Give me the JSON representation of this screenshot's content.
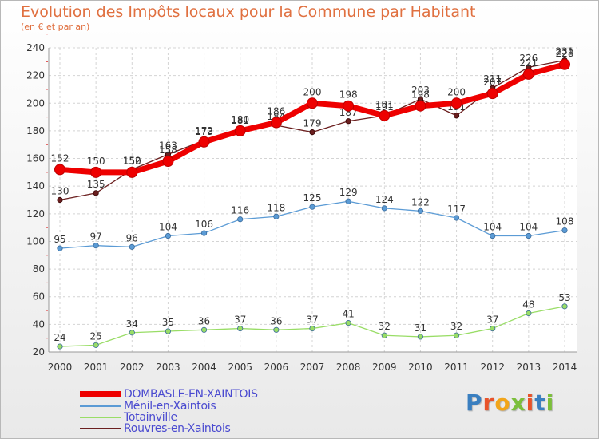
{
  "title": "Evolution des Impôts locaux pour la Commune par Habitant",
  "subtitle": "(en € et par an)",
  "logo_text": "Proxiti",
  "chart_data": {
    "type": "line",
    "title": "Evolution des Impôts locaux pour la Commune par Habitant",
    "ylabel": "(en € et par an)",
    "xlabel": "",
    "ylim": [
      20,
      240
    ],
    "yticks": [
      "20",
      "40",
      "60",
      "80",
      "100",
      "120",
      "140",
      "160",
      "180",
      "200",
      "220",
      "240"
    ],
    "grid": true,
    "legend_position": "bottom-left",
    "categories": [
      "2000",
      "2001",
      "2002",
      "2003",
      "2004",
      "2005",
      "2006",
      "2007",
      "2008",
      "2009",
      "2010",
      "2011",
      "2012",
      "2013",
      "2014"
    ],
    "series": [
      {
        "name": "Rouvres-en-Xaintois",
        "color": "#6b1f1f",
        "values": [
          130,
          135,
          152,
          163,
          173,
          181,
          184,
          179,
          187,
          191,
          203,
          191,
          211,
          226,
          231
        ]
      },
      {
        "name": "Ménil-en-Xaintois",
        "color": "#5b9bd5",
        "values": [
          95,
          97,
          96,
          104,
          106,
          116,
          118,
          125,
          129,
          124,
          122,
          117,
          104,
          104,
          108
        ]
      },
      {
        "name": "Totainville",
        "color": "#99dd66",
        "values": [
          24,
          25,
          34,
          35,
          36,
          37,
          36,
          37,
          41,
          32,
          31,
          32,
          37,
          48,
          53
        ]
      },
      {
        "name": "DOMBASLE-EN-XAINTOIS",
        "color": "#ee0000",
        "values": [
          152,
          150,
          150,
          158,
          172,
          180,
          186,
          200,
          198,
          191,
          198,
          200,
          207,
          221,
          228
        ]
      }
    ],
    "legend": [
      "DOMBASLE-EN-XAINTOIS",
      "Ménil-en-Xaintois",
      "Totainville",
      "Rouvres-en-Xaintois"
    ]
  }
}
